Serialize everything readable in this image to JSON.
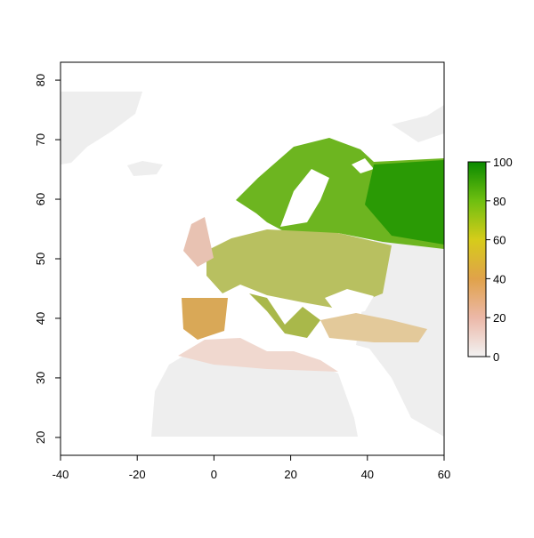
{
  "chart_data": {
    "type": "raster",
    "xlim": [
      -40,
      60
    ],
    "ylim": [
      17,
      83
    ],
    "xticks": [
      -40,
      -20,
      0,
      20,
      40,
      60
    ],
    "yticks": [
      20,
      30,
      40,
      50,
      60,
      70,
      80
    ],
    "zlim": [
      0,
      100
    ],
    "zticks": [
      0,
      20,
      40,
      60,
      80,
      100
    ],
    "colors": [
      "#f2f2f2",
      "#ecb8a8",
      "#e0a24a",
      "#d6cc1a",
      "#6fbf10",
      "#0a8a00"
    ]
  }
}
